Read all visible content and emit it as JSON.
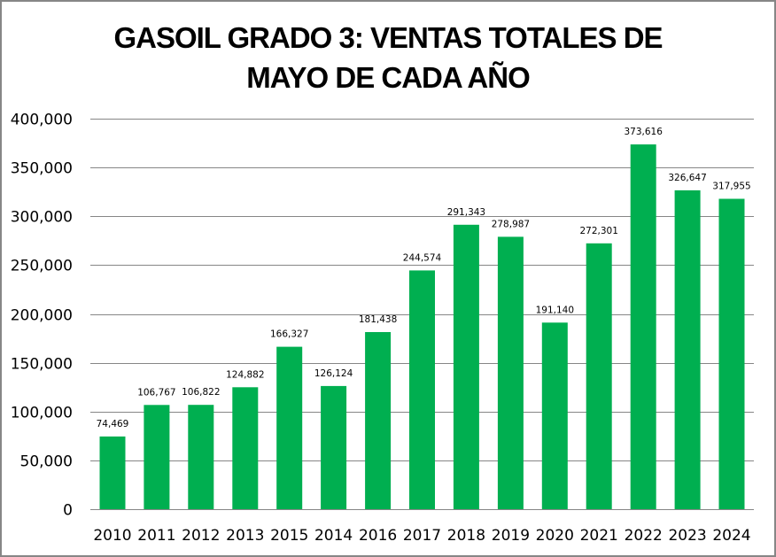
{
  "chart_data": {
    "type": "bar",
    "title_lines": [
      "GASOIL GRADO 3: VENTAS TOTALES DE",
      "MAYO DE CADA AÑO"
    ],
    "categories": [
      "2010",
      "2011",
      "2012",
      "2013",
      "2015",
      "2014",
      "2016",
      "2017",
      "2018",
      "2019",
      "2020",
      "2021",
      "2022",
      "2023",
      "2024"
    ],
    "values": [
      74469,
      106767,
      106822,
      124882,
      166327,
      126124,
      181438,
      244574,
      291343,
      278987,
      191140,
      272301,
      373616,
      326647,
      317955
    ],
    "data_labels": [
      "74,469",
      "106,767",
      "106,822",
      "124,882",
      "166,327",
      "126,124",
      "181,438",
      "244,574",
      "291,343",
      "278,987",
      "191,140",
      "272,301",
      "373,616",
      "326,647",
      "317,955"
    ],
    "ylim": [
      0,
      400000
    ],
    "yticks": [
      0,
      50000,
      100000,
      150000,
      200000,
      250000,
      300000,
      350000,
      400000
    ],
    "ytick_labels": [
      "0",
      "50,000",
      "100,000",
      "150,000",
      "200,000",
      "250,000",
      "300,000",
      "350,000",
      "400,000"
    ],
    "xlabel": "",
    "ylabel": "",
    "grid": true,
    "legend": "none",
    "colors": {
      "bar": "#00AF50",
      "grid": "#868686",
      "border": "#868686"
    }
  }
}
